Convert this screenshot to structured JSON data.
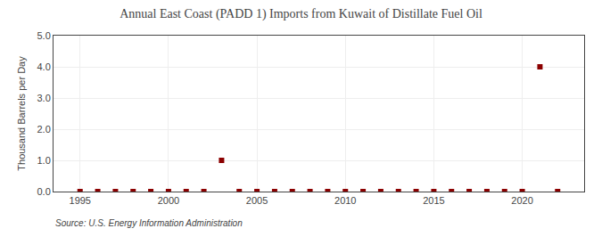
{
  "chart_data": {
    "type": "scatter",
    "title": "Annual East Coast (PADD 1) Imports from Kuwait of Distillate Fuel Oil",
    "ylabel": "Thousand Barrels per Day",
    "annotations": [
      "Source: U.S. Energy Information Administration"
    ],
    "x": [
      1995,
      1996,
      1997,
      1998,
      1999,
      2000,
      2001,
      2002,
      2003,
      2004,
      2005,
      2006,
      2007,
      2008,
      2009,
      2010,
      2011,
      2012,
      2013,
      2014,
      2015,
      2016,
      2017,
      2018,
      2019,
      2020,
      2021,
      2022
    ],
    "values": [
      0.0,
      0.0,
      0.0,
      0.0,
      0.0,
      0.0,
      0.0,
      0.0,
      1.0,
      0.0,
      0.0,
      0.0,
      0.0,
      0.0,
      0.0,
      0.0,
      0.0,
      0.0,
      0.0,
      0.0,
      0.0,
      0.0,
      0.0,
      0.0,
      0.0,
      0.0,
      4.0,
      0.0
    ],
    "color": "#8b0000",
    "marker": "square",
    "xlim": [
      1993.5,
      2023.5
    ],
    "xticks": [
      1995,
      2000,
      2005,
      2010,
      2015,
      2020
    ],
    "ylim": [
      0,
      5.0
    ],
    "yticks": [
      {
        "value": 0.0,
        "label": "0.0"
      },
      {
        "value": 1.0,
        "label": "1.0"
      },
      {
        "value": 2.0,
        "label": "2.0"
      },
      {
        "value": 3.0,
        "label": "3.0"
      },
      {
        "value": 4.0,
        "label": "4.0"
      },
      {
        "value": 5.0,
        "label": "5.0"
      }
    ],
    "grid": true
  }
}
